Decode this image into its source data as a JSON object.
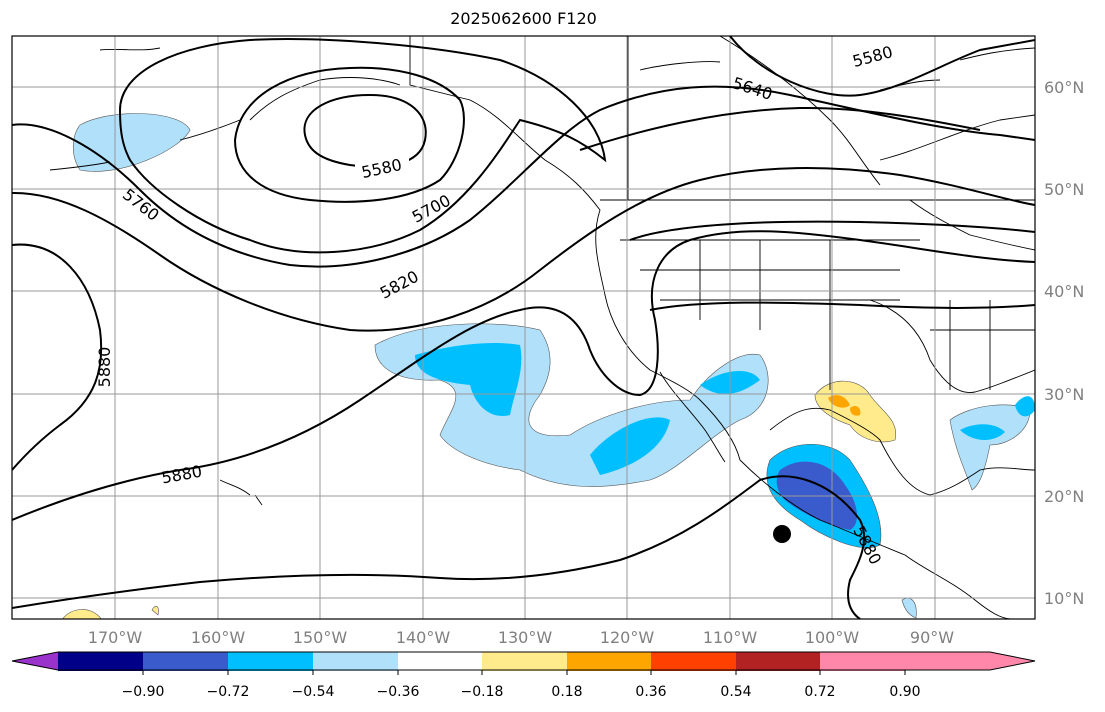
{
  "title": "2025062600 F120",
  "longitude_labels": [
    "170°W",
    "160°W",
    "150°W",
    "140°W",
    "130°W",
    "120°W",
    "110°W",
    "100°W",
    "90°W"
  ],
  "latitude_labels": [
    "60°N",
    "50°N",
    "40°N",
    "30°N",
    "20°N",
    "10°N"
  ],
  "contour_labels": [
    "5580",
    "5640",
    "5580",
    "5700",
    "5760",
    "5820",
    "5880",
    "5880",
    "5880"
  ],
  "colorbar": {
    "tick_labels": [
      "−0.90",
      "−0.72",
      "−0.54",
      "−0.36",
      "−0.18",
      "0.18",
      "0.36",
      "0.54",
      "0.72",
      "0.90"
    ],
    "colors": [
      "#9933cc",
      "#000088",
      "#3a5bcc",
      "#00bfff",
      "#b0e0fa",
      "#ffffff",
      "#ffeb8c",
      "#ffa500",
      "#ff4000",
      "#b22222",
      "#ff88aa"
    ]
  },
  "marker": "filled-circle"
}
